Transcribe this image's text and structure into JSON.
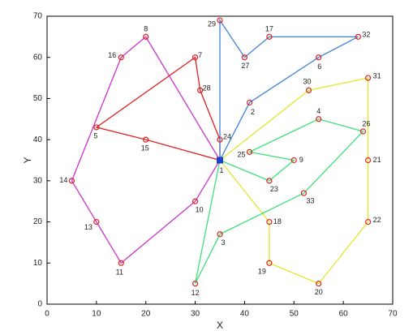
{
  "chart_data": {
    "type": "line",
    "x_label": "X",
    "y_label": "Y",
    "xlim": [
      0,
      70
    ],
    "ylim": [
      0,
      70
    ],
    "xticks": [
      0,
      10,
      20,
      30,
      40,
      50,
      60,
      70
    ],
    "yticks": [
      0,
      10,
      20,
      30,
      40,
      50,
      60,
      70
    ],
    "grid": false,
    "nodes": {
      "labels": [
        "1",
        "2",
        "3",
        "4",
        "5",
        "6",
        "7",
        "8",
        "9",
        "10",
        "11",
        "12",
        "13",
        "14",
        "15",
        "16",
        "17",
        "18",
        "19",
        "20",
        "21",
        "22",
        "23",
        "24",
        "25",
        "26",
        "27",
        "28",
        "29",
        "30",
        "31",
        "32",
        "33"
      ],
      "x": [
        35,
        41,
        35,
        55,
        10,
        55,
        30,
        20,
        50,
        30,
        15,
        30,
        10,
        5,
        20,
        15,
        45,
        45,
        45,
        55,
        65,
        65,
        45,
        35,
        41,
        64,
        40,
        31,
        35,
        53,
        65,
        63,
        52
      ],
      "y": [
        35,
        49,
        17,
        45,
        43,
        60,
        60,
        65,
        35,
        25,
        10,
        5,
        20,
        30,
        40,
        60,
        65,
        20,
        10,
        5,
        35,
        20,
        30,
        40,
        37,
        42,
        60,
        52,
        69,
        52,
        55,
        65,
        27
      ],
      "color": "#e02020",
      "depot_color": "#1f3fd0"
    },
    "series": [
      {
        "color": "#cc33cc",
        "x": [
          35,
          20,
          15,
          5,
          10,
          15,
          30,
          35
        ],
        "y": [
          35,
          65,
          60,
          30,
          20,
          10,
          25,
          35
        ]
      },
      {
        "color": "#e02020",
        "x": [
          35,
          35,
          31,
          30,
          10,
          20,
          35
        ],
        "y": [
          35,
          40,
          52,
          60,
          43,
          40,
          35
        ]
      },
      {
        "color": "#3f7fd6",
        "x": [
          35,
          35,
          40,
          45,
          63,
          55,
          41,
          35
        ],
        "y": [
          35,
          69,
          60,
          65,
          65,
          60,
          49,
          35
        ]
      },
      {
        "color": "#e6e62c",
        "x": [
          35,
          53,
          65,
          65,
          65,
          55,
          45,
          45,
          35
        ],
        "y": [
          35,
          52,
          55,
          35,
          20,
          5,
          10,
          20,
          35
        ]
      },
      {
        "color": "#3ee07a",
        "x": [
          35,
          45,
          50,
          41,
          55,
          64,
          52,
          35,
          30,
          35
        ],
        "y": [
          35,
          30,
          35,
          37,
          45,
          42,
          27,
          17,
          5,
          35
        ]
      }
    ]
  }
}
